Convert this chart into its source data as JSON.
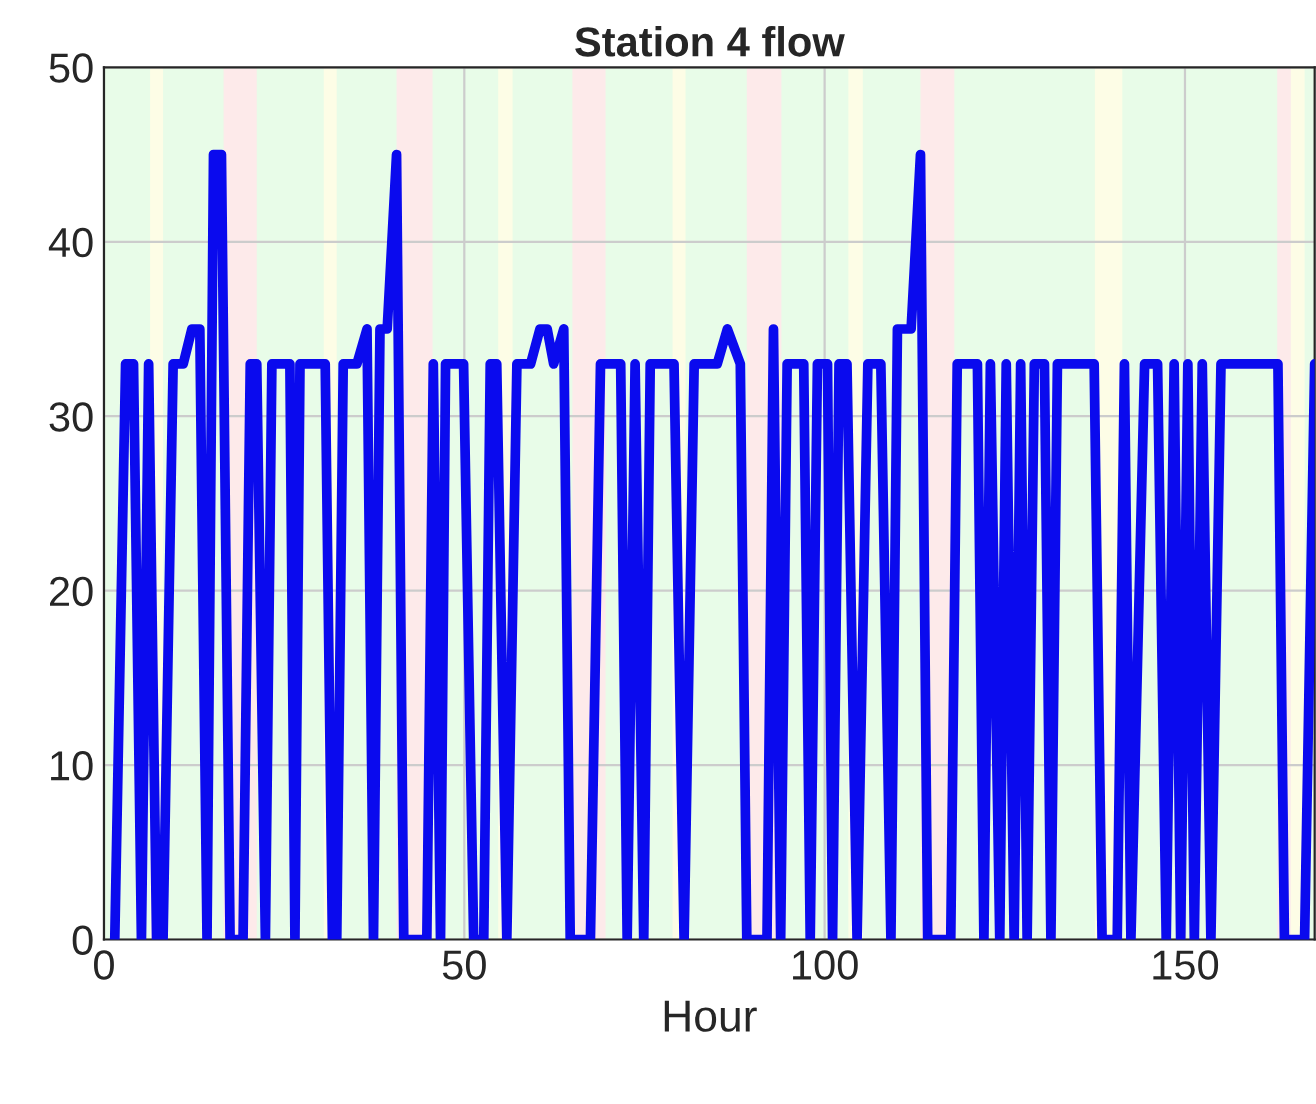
{
  "chart_data": {
    "type": "line",
    "title": "Station 4 flow",
    "xlabel": "Hour",
    "xlim": [
      0,
      168
    ],
    "ylim": [
      0,
      50
    ],
    "xticks": [
      0,
      50,
      100,
      150
    ],
    "yticks": [
      0,
      10,
      20,
      30,
      40,
      50
    ],
    "grid": true,
    "line_style": "solid",
    "marker": "none",
    "series": [
      {
        "color": "#0a0aee",
        "x": [
          1.5,
          3,
          4.1,
          5.2,
          6.2,
          7.3,
          8.2,
          9.6,
          11,
          12.2,
          13.3,
          14.3,
          15.2,
          16.3,
          17.5,
          19.3,
          20.3,
          21.2,
          22.4,
          23.3,
          25.8,
          26.5,
          27.2,
          30.7,
          31.7,
          32.3,
          33.2,
          35.1,
          36.5,
          37.4,
          38.3,
          39.3,
          40.6,
          41.6,
          44.8,
          45.7,
          46.7,
          47.4,
          49.9,
          51.3,
          52.7,
          53.6,
          54.5,
          55.9,
          57.3,
          59.2,
          60.5,
          61.5,
          62.4,
          63.8,
          64.7,
          67.5,
          68.9,
          71.7,
          72.6,
          73.7,
          74.9,
          75.8,
          79.1,
          80.5,
          81.9,
          85.1,
          86.5,
          88.3,
          89.2,
          92.0,
          92.9,
          93.9,
          94.8,
          97.1,
          98.0,
          99.0,
          100.4,
          101.1,
          102,
          103.1,
          104.5,
          106,
          107.8,
          109.2,
          110.1,
          112,
          113.3,
          114.3,
          117.5,
          118.4,
          121.2,
          122.1,
          123,
          124.3,
          125.2,
          126.3,
          127.2,
          128.1,
          129.1,
          130.5,
          131.4,
          132.3,
          137.4,
          138.5,
          140.6,
          141.6,
          142.5,
          144.4,
          146.2,
          147.4,
          148.5,
          149.4,
          150.4,
          151.3,
          152.4,
          153.6,
          155,
          162.9,
          163.8,
          166.6,
          168
        ],
        "values": [
          0,
          33,
          33,
          0,
          33,
          0,
          0,
          33,
          33,
          35,
          35,
          0,
          45,
          45,
          0,
          0,
          33,
          33,
          0,
          33,
          33,
          0,
          33,
          33,
          0,
          0,
          33,
          33,
          35,
          0,
          35,
          35,
          45,
          0,
          0,
          33,
          0,
          33,
          33,
          0,
          0,
          33,
          33,
          0,
          33,
          33,
          35,
          35,
          33,
          35,
          0,
          0,
          33,
          33,
          0,
          33,
          0,
          33,
          33,
          0,
          33,
          33,
          35,
          33,
          0,
          0,
          35,
          0,
          33,
          33,
          0,
          33,
          33,
          0,
          33,
          33,
          0,
          33,
          33,
          0,
          35,
          35,
          45,
          0,
          0,
          33,
          33,
          0,
          33,
          0,
          33,
          0,
          33,
          0,
          33,
          33,
          0,
          33,
          33,
          0,
          0,
          33,
          0,
          33,
          33,
          0,
          33,
          0,
          33,
          0,
          33,
          0,
          33,
          33,
          0,
          0,
          33
        ]
      }
    ],
    "bands": [
      {
        "axis": "x",
        "from": 0,
        "to": 168,
        "color": "#e8fce8"
      },
      {
        "axis": "x",
        "from": 6.4,
        "to": 8.2,
        "color": "#fdfde6"
      },
      {
        "axis": "x",
        "from": 16.6,
        "to": 21.2,
        "color": "#fdeaea"
      },
      {
        "axis": "x",
        "from": 30.5,
        "to": 32.3,
        "color": "#fdfde6"
      },
      {
        "axis": "x",
        "from": 40.6,
        "to": 45.6,
        "color": "#fdeaea"
      },
      {
        "axis": "x",
        "from": 54.7,
        "to": 56.7,
        "color": "#fdfde6"
      },
      {
        "axis": "x",
        "from": 65,
        "to": 69.6,
        "color": "#fdeaea"
      },
      {
        "axis": "x",
        "from": 78.9,
        "to": 80.7,
        "color": "#fdfde6"
      },
      {
        "axis": "x",
        "from": 89.2,
        "to": 94,
        "color": "#fdeaea"
      },
      {
        "axis": "x",
        "from": 103.3,
        "to": 105.3,
        "color": "#fdfde6"
      },
      {
        "axis": "x",
        "from": 113.3,
        "to": 118,
        "color": "#fdeaea"
      },
      {
        "axis": "x",
        "from": 137.5,
        "to": 141.3,
        "color": "#fdfde6"
      },
      {
        "axis": "x",
        "from": 162.8,
        "to": 164.7,
        "color": "#fdeaea"
      },
      {
        "axis": "x",
        "from": 164.7,
        "to": 166.6,
        "color": "#fdfde6"
      }
    ]
  }
}
